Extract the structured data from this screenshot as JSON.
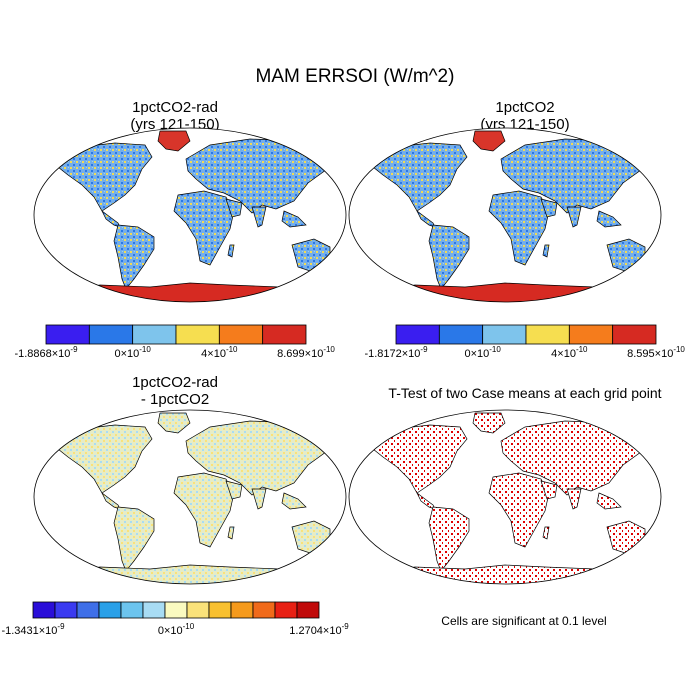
{
  "title": "MAM ERRSOI (W/m^2)",
  "panels": [
    {
      "title_line1": "1pctCO2-rad",
      "title_line2": "(yrs 121-150)",
      "colorbar": {
        "colors": [
          "#3a1ef0",
          "#2a78e8",
          "#7ec4ec",
          "#f6de50",
          "#f57c1c",
          "#d62a22"
        ],
        "labels": [
          {
            "mant": "-1.8868",
            "exp": "-9"
          },
          {
            "mant": "0",
            "exp": "-10"
          },
          {
            "mant": "4",
            "exp": "-10"
          },
          {
            "mant": "8.699",
            "exp": "-10"
          }
        ]
      }
    },
    {
      "title_line1": "1pctCO2",
      "title_line2": "(yrs 121-150)",
      "colorbar": {
        "colors": [
          "#3a1ef0",
          "#2a78e8",
          "#7ec4ec",
          "#f6de50",
          "#f57c1c",
          "#d62a22"
        ],
        "labels": [
          {
            "mant": "-1.8172",
            "exp": "-9"
          },
          {
            "mant": "0",
            "exp": "-10"
          },
          {
            "mant": "4",
            "exp": "-10"
          },
          {
            "mant": "8.595",
            "exp": "-10"
          }
        ]
      }
    },
    {
      "title_line1": "1pctCO2-rad",
      "title_line2": "- 1pctCO2",
      "colorbar": {
        "colors": [
          "#2a0ed8",
          "#3a3af0",
          "#3f6fe8",
          "#2aa0e8",
          "#6cc4ee",
          "#a8dcf4",
          "#fafac0",
          "#fae27a",
          "#f8c030",
          "#f59a1c",
          "#f06a1a",
          "#e82014",
          "#c00a0a"
        ],
        "labels": [
          {
            "mant": "-1.3431",
            "exp": "-9"
          },
          {
            "mant": "0",
            "exp": "-10"
          },
          {
            "mant": "1.2704",
            "exp": "-9"
          }
        ]
      }
    },
    {
      "title_line1": "T-Test of two Case means at each grid point",
      "note": "Cells are significant at 0.1 level"
    }
  ],
  "colors": {
    "land_base": "#74aeea",
    "greenland": "#d8352a",
    "antarctica": "#d62a22",
    "diff_land": "#e6ecc6",
    "significant": "#e00000"
  }
}
